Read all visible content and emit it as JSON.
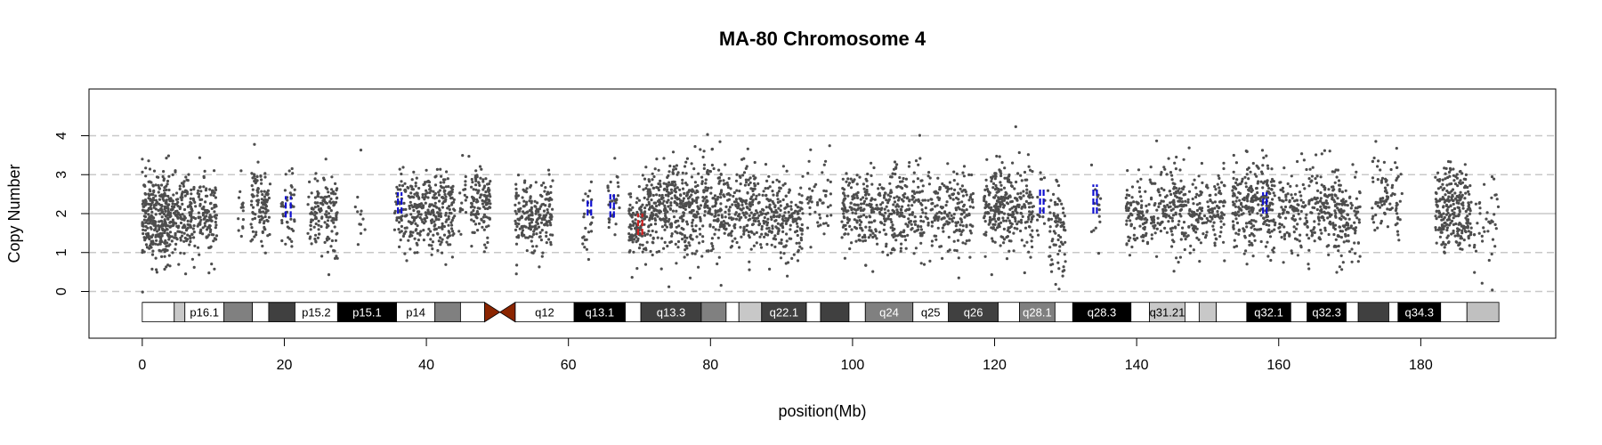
{
  "chart_data": {
    "type": "scatter",
    "title": "MA-80  Chromosome 4",
    "xlabel": "position(Mb)",
    "ylabel": "Copy Number",
    "xlim": [
      -7.5,
      199
    ],
    "ylim": [
      -1.2,
      5.2
    ],
    "x_ticks": [
      0,
      20,
      40,
      60,
      80,
      100,
      120,
      140,
      160,
      180
    ],
    "y_ticks": [
      0,
      1,
      2,
      3,
      4
    ],
    "y_tick_labels": [
      "0",
      "1",
      "2",
      "3",
      "4"
    ],
    "grid": {
      "dashed_y": [
        0,
        1,
        3,
        4
      ],
      "solid_y": [
        2
      ]
    },
    "colors": {
      "points": "#4d4d4d",
      "gain_segment": "#1010d0",
      "loss_segment": "#d02020",
      "centromere": "#8b2500",
      "grid_dashed": "#c8c8c8",
      "grid_solid": "#c8c8c8"
    },
    "point_clusters": [
      {
        "x0": 0.0,
        "x1": 4.0,
        "mean": 1.9,
        "sd": 0.55,
        "n": 320
      },
      {
        "x0": 4.0,
        "x1": 7.5,
        "mean": 1.9,
        "sd": 0.5,
        "n": 170
      },
      {
        "x0": 7.8,
        "x1": 10.5,
        "mean": 1.9,
        "sd": 0.5,
        "n": 120
      },
      {
        "x0": 13.5,
        "x1": 14.3,
        "mean": 2.1,
        "sd": 0.4,
        "n": 15
      },
      {
        "x0": 15.3,
        "x1": 18.0,
        "mean": 2.2,
        "sd": 0.5,
        "n": 110
      },
      {
        "x0": 19.5,
        "x1": 21.5,
        "mean": 2.1,
        "sd": 0.45,
        "n": 45
      },
      {
        "x0": 23.3,
        "x1": 27.5,
        "mean": 2.0,
        "sd": 0.55,
        "n": 150
      },
      {
        "x0": 29.5,
        "x1": 31.5,
        "mean": 2.2,
        "sd": 0.6,
        "n": 12
      },
      {
        "x0": 35.5,
        "x1": 37.5,
        "mean": 2.1,
        "sd": 0.5,
        "n": 60
      },
      {
        "x0": 37.5,
        "x1": 44.0,
        "mean": 2.0,
        "sd": 0.5,
        "n": 280
      },
      {
        "x0": 44.5,
        "x1": 46.0,
        "mean": 2.4,
        "sd": 0.5,
        "n": 20
      },
      {
        "x0": 46.3,
        "x1": 49.0,
        "mean": 2.2,
        "sd": 0.45,
        "n": 120
      },
      {
        "x0": 52.5,
        "x1": 57.8,
        "mean": 1.95,
        "sd": 0.45,
        "n": 210
      },
      {
        "x0": 62.0,
        "x1": 63.5,
        "mean": 2.0,
        "sd": 0.5,
        "n": 25
      },
      {
        "x0": 65.5,
        "x1": 67.2,
        "mean": 2.2,
        "sd": 0.45,
        "n": 30
      },
      {
        "x0": 68.5,
        "x1": 70.3,
        "mean": 1.6,
        "sd": 0.5,
        "n": 80
      },
      {
        "x0": 70.3,
        "x1": 86.5,
        "mean": 2.15,
        "sd": 0.6,
        "n": 700
      },
      {
        "x0": 86.5,
        "x1": 93.0,
        "mean": 1.9,
        "sd": 0.5,
        "n": 230
      },
      {
        "x0": 93.5,
        "x1": 97.0,
        "mean": 2.3,
        "sd": 0.55,
        "n": 50
      },
      {
        "x0": 98.5,
        "x1": 117.0,
        "mean": 2.05,
        "sd": 0.55,
        "n": 600
      },
      {
        "x0": 118.5,
        "x1": 125.5,
        "mean": 2.15,
        "sd": 0.55,
        "n": 300
      },
      {
        "x0": 126.0,
        "x1": 127.2,
        "mean": 2.3,
        "sd": 0.55,
        "n": 15
      },
      {
        "x0": 127.5,
        "x1": 130.0,
        "mean": 1.6,
        "sd": 0.6,
        "n": 80
      },
      {
        "x0": 133.0,
        "x1": 135.0,
        "mean": 2.1,
        "sd": 0.55,
        "n": 15
      },
      {
        "x0": 138.5,
        "x1": 152.5,
        "mean": 2.05,
        "sd": 0.55,
        "n": 420
      },
      {
        "x0": 153.5,
        "x1": 159.5,
        "mean": 2.2,
        "sd": 0.55,
        "n": 260
      },
      {
        "x0": 160.0,
        "x1": 168.0,
        "mean": 2.1,
        "sd": 0.55,
        "n": 250
      },
      {
        "x0": 168.0,
        "x1": 171.5,
        "mean": 1.9,
        "sd": 0.55,
        "n": 120
      },
      {
        "x0": 173.0,
        "x1": 177.5,
        "mean": 2.45,
        "sd": 0.5,
        "n": 90
      },
      {
        "x0": 182.0,
        "x1": 187.0,
        "mean": 2.1,
        "sd": 0.55,
        "n": 260
      },
      {
        "x0": 187.0,
        "x1": 191.0,
        "mean": 1.8,
        "sd": 0.6,
        "n": 45
      }
    ],
    "segments": [
      {
        "x0": 20.2,
        "x1": 20.9,
        "y0": 1.9,
        "y1": 2.45,
        "type": "gain"
      },
      {
        "x0": 36.0,
        "x1": 36.5,
        "y0": 2.0,
        "y1": 2.55,
        "type": "gain"
      },
      {
        "x0": 62.7,
        "x1": 63.2,
        "y0": 1.95,
        "y1": 2.4,
        "type": "gain"
      },
      {
        "x0": 65.9,
        "x1": 66.4,
        "y0": 1.9,
        "y1": 2.5,
        "type": "gain"
      },
      {
        "x0": 69.8,
        "x1": 70.4,
        "y0": 1.45,
        "y1": 2.0,
        "type": "loss"
      },
      {
        "x0": 126.4,
        "x1": 126.9,
        "y0": 2.0,
        "y1": 2.65,
        "type": "gain"
      },
      {
        "x0": 133.9,
        "x1": 134.4,
        "y0": 2.0,
        "y1": 2.75,
        "type": "gain"
      },
      {
        "x0": 157.8,
        "x1": 158.3,
        "y0": 2.0,
        "y1": 2.55,
        "type": "gain"
      }
    ],
    "ideogram": {
      "y_top": -0.28,
      "y_bottom": -0.78,
      "chrom_end": 191,
      "bands": [
        {
          "x0": 0.0,
          "x1": 4.5,
          "fill": "#ffffff",
          "label": ""
        },
        {
          "x0": 4.5,
          "x1": 6.0,
          "fill": "#c8c8c8",
          "label": ""
        },
        {
          "x0": 6.0,
          "x1": 11.5,
          "fill": "#ffffff",
          "label": "p16.1"
        },
        {
          "x0": 11.5,
          "x1": 15.5,
          "fill": "#808080",
          "label": ""
        },
        {
          "x0": 15.5,
          "x1": 17.8,
          "fill": "#ffffff",
          "label": ""
        },
        {
          "x0": 17.8,
          "x1": 21.5,
          "fill": "#404040",
          "label": ""
        },
        {
          "x0": 21.5,
          "x1": 27.5,
          "fill": "#ffffff",
          "label": "p15.2"
        },
        {
          "x0": 27.5,
          "x1": 35.8,
          "fill": "#000000",
          "label": "p15.1"
        },
        {
          "x0": 35.8,
          "x1": 41.2,
          "fill": "#ffffff",
          "label": "p14"
        },
        {
          "x0": 41.2,
          "x1": 44.8,
          "fill": "#808080",
          "label": ""
        },
        {
          "x0": 44.8,
          "x1": 48.2,
          "fill": "#ffffff",
          "label": ""
        },
        {
          "x0": 52.5,
          "x1": 60.8,
          "fill": "#ffffff",
          "label": "q12"
        },
        {
          "x0": 60.8,
          "x1": 68.0,
          "fill": "#000000",
          "label": "q13.1"
        },
        {
          "x0": 68.0,
          "x1": 70.2,
          "fill": "#ffffff",
          "label": ""
        },
        {
          "x0": 70.2,
          "x1": 78.7,
          "fill": "#404040",
          "label": "q13.3"
        },
        {
          "x0": 78.7,
          "x1": 82.2,
          "fill": "#808080",
          "label": ""
        },
        {
          "x0": 82.2,
          "x1": 84.0,
          "fill": "#ffffff",
          "label": ""
        },
        {
          "x0": 84.0,
          "x1": 87.2,
          "fill": "#c8c8c8",
          "label": ""
        },
        {
          "x0": 87.2,
          "x1": 93.5,
          "fill": "#404040",
          "label": "q22.1"
        },
        {
          "x0": 93.5,
          "x1": 95.5,
          "fill": "#ffffff",
          "label": ""
        },
        {
          "x0": 95.5,
          "x1": 99.5,
          "fill": "#404040",
          "label": ""
        },
        {
          "x0": 99.5,
          "x1": 101.8,
          "fill": "#ffffff",
          "label": ""
        },
        {
          "x0": 101.8,
          "x1": 108.5,
          "fill": "#808080",
          "label": "q24"
        },
        {
          "x0": 108.5,
          "x1": 113.5,
          "fill": "#ffffff",
          "label": "q25"
        },
        {
          "x0": 113.5,
          "x1": 120.5,
          "fill": "#404040",
          "label": "q26"
        },
        {
          "x0": 120.5,
          "x1": 123.5,
          "fill": "#ffffff",
          "label": ""
        },
        {
          "x0": 123.5,
          "x1": 128.5,
          "fill": "#808080",
          "label": "q28.1"
        },
        {
          "x0": 128.5,
          "x1": 131.0,
          "fill": "#ffffff",
          "label": ""
        },
        {
          "x0": 131.0,
          "x1": 139.2,
          "fill": "#000000",
          "label": "q28.3"
        },
        {
          "x0": 139.2,
          "x1": 141.8,
          "fill": "#ffffff",
          "label": ""
        },
        {
          "x0": 141.8,
          "x1": 146.8,
          "fill": "#c8c8c8",
          "label": "q31.21"
        },
        {
          "x0": 146.8,
          "x1": 148.8,
          "fill": "#ffffff",
          "label": ""
        },
        {
          "x0": 148.8,
          "x1": 151.2,
          "fill": "#c8c8c8",
          "label": ""
        },
        {
          "x0": 151.2,
          "x1": 155.5,
          "fill": "#ffffff",
          "label": ""
        },
        {
          "x0": 155.5,
          "x1": 161.7,
          "fill": "#000000",
          "label": "q32.1"
        },
        {
          "x0": 161.7,
          "x1": 164.0,
          "fill": "#ffffff",
          "label": ""
        },
        {
          "x0": 164.0,
          "x1": 169.5,
          "fill": "#000000",
          "label": "q32.3"
        },
        {
          "x0": 169.5,
          "x1": 171.2,
          "fill": "#ffffff",
          "label": ""
        },
        {
          "x0": 171.2,
          "x1": 175.5,
          "fill": "#404040",
          "label": ""
        },
        {
          "x0": 175.5,
          "x1": 176.8,
          "fill": "#ffffff",
          "label": ""
        },
        {
          "x0": 176.8,
          "x1": 182.8,
          "fill": "#000000",
          "label": "q34.3"
        },
        {
          "x0": 182.8,
          "x1": 186.5,
          "fill": "#ffffff",
          "label": ""
        },
        {
          "x0": 186.5,
          "x1": 191.0,
          "fill": "#c0c0c0",
          "label": ""
        }
      ],
      "centromere": {
        "x0": 48.2,
        "x1": 52.5,
        "mid": 50.35
      }
    }
  }
}
